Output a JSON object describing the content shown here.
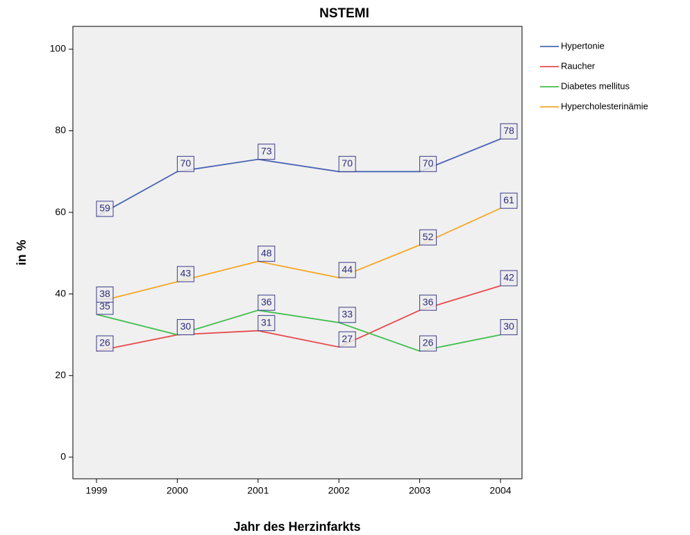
{
  "chart_data": {
    "type": "line",
    "title": "NSTEMI",
    "x_label": "Jahr des Herzinfarkts",
    "y_label": "in %",
    "categories": [
      "1999",
      "2000",
      "2001",
      "2002",
      "2003",
      "2004"
    ],
    "series": [
      {
        "name": "Hypertonie",
        "color": "#4a64b4",
        "values": [
          59,
          70,
          73,
          70,
          70,
          78
        ]
      },
      {
        "name": "Raucher",
        "color": "#e8474a",
        "values": [
          26,
          30,
          31,
          27,
          36,
          42
        ]
      },
      {
        "name": "Diabetes mellitus",
        "color": "#3dbe4a",
        "values": [
          35,
          30,
          36,
          33,
          26,
          30
        ]
      },
      {
        "name": "Hypercholesterinämie",
        "color": "#f5a623",
        "values": [
          38,
          43,
          48,
          44,
          52,
          61
        ]
      }
    ],
    "ylim": [
      -5.3,
      105.6
    ],
    "yticks": [
      0,
      20,
      40,
      60,
      80,
      100
    ],
    "grid": false,
    "legend": "right"
  }
}
